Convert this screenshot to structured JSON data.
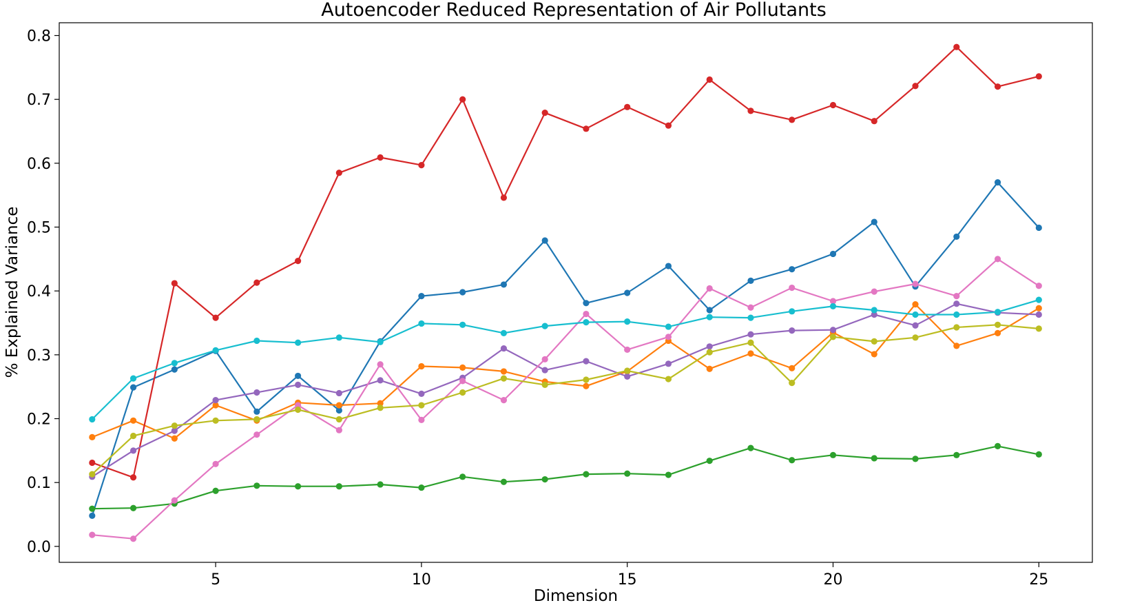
{
  "chart_data": {
    "type": "line",
    "title": "Autoencoder Reduced Representation of Air Pollutants",
    "xlabel": "Dimension",
    "ylabel": "% Explained Variance",
    "xlim": [
      1.2,
      26.3
    ],
    "ylim": [
      -0.025,
      0.82
    ],
    "xticks": [
      5,
      10,
      15,
      20,
      25
    ],
    "yticks": [
      0.0,
      0.1,
      0.2,
      0.3,
      0.4,
      0.5,
      0.6,
      0.7,
      0.8
    ],
    "grid": false,
    "x": [
      2,
      3,
      4,
      5,
      6,
      7,
      8,
      9,
      10,
      11,
      12,
      13,
      14,
      15,
      16,
      17,
      18,
      19,
      20,
      21,
      22,
      23,
      24,
      25
    ],
    "series": [
      {
        "color": "#1f77b4",
        "values": [
          0.048,
          0.249,
          0.277,
          0.306,
          0.211,
          0.267,
          0.213,
          0.321,
          0.392,
          0.398,
          0.41,
          0.479,
          0.381,
          0.397,
          0.439,
          0.37,
          0.416,
          0.434,
          0.458,
          0.508,
          0.407,
          0.485,
          0.57,
          0.499
        ]
      },
      {
        "color": "#ff7f0e",
        "values": [
          0.171,
          0.197,
          0.169,
          0.221,
          0.197,
          0.225,
          0.221,
          0.224,
          0.282,
          0.28,
          0.274,
          0.258,
          0.251,
          0.274,
          0.322,
          0.278,
          0.302,
          0.279,
          0.335,
          0.301,
          0.379,
          0.314,
          0.334,
          0.373
        ]
      },
      {
        "color": "#2ca02c",
        "values": [
          0.059,
          0.06,
          0.067,
          0.087,
          0.095,
          0.094,
          0.094,
          0.097,
          0.092,
          0.109,
          0.101,
          0.105,
          0.113,
          0.114,
          0.112,
          0.134,
          0.154,
          0.135,
          0.143,
          0.138,
          0.137,
          0.143,
          0.157,
          0.144
        ]
      },
      {
        "color": "#d62728",
        "values": [
          0.131,
          0.108,
          0.412,
          0.358,
          0.413,
          0.447,
          0.585,
          0.609,
          0.597,
          0.7,
          0.546,
          0.679,
          0.654,
          0.688,
          0.659,
          0.731,
          0.682,
          0.668,
          0.691,
          0.666,
          0.721,
          0.782,
          0.72,
          0.736
        ]
      },
      {
        "color": "#9467bd",
        "values": [
          0.109,
          0.15,
          0.181,
          0.229,
          0.241,
          0.253,
          0.24,
          0.26,
          0.239,
          0.264,
          0.31,
          0.276,
          0.29,
          0.266,
          0.286,
          0.313,
          0.332,
          0.338,
          0.339,
          0.363,
          0.346,
          0.38,
          0.366,
          0.363
        ]
      },
      {
        "color": "#e377c2",
        "values": [
          0.018,
          0.012,
          0.072,
          0.129,
          0.175,
          0.221,
          0.182,
          0.285,
          0.198,
          0.259,
          0.229,
          0.293,
          0.364,
          0.308,
          0.328,
          0.404,
          0.374,
          0.405,
          0.384,
          0.399,
          0.411,
          0.392,
          0.45,
          0.408
        ]
      },
      {
        "color": "#bcbd22",
        "values": [
          0.113,
          0.173,
          0.189,
          0.197,
          0.199,
          0.214,
          0.199,
          0.217,
          0.221,
          0.241,
          0.263,
          0.253,
          0.261,
          0.275,
          0.262,
          0.304,
          0.319,
          0.256,
          0.328,
          0.321,
          0.327,
          0.343,
          0.347,
          0.341
        ]
      },
      {
        "color": "#17becf",
        "values": [
          0.199,
          0.263,
          0.287,
          0.307,
          0.322,
          0.319,
          0.327,
          0.32,
          0.349,
          0.347,
          0.334,
          0.345,
          0.351,
          0.352,
          0.344,
          0.359,
          0.358,
          0.368,
          0.376,
          0.37,
          0.363,
          0.363,
          0.367,
          0.386
        ]
      }
    ]
  }
}
